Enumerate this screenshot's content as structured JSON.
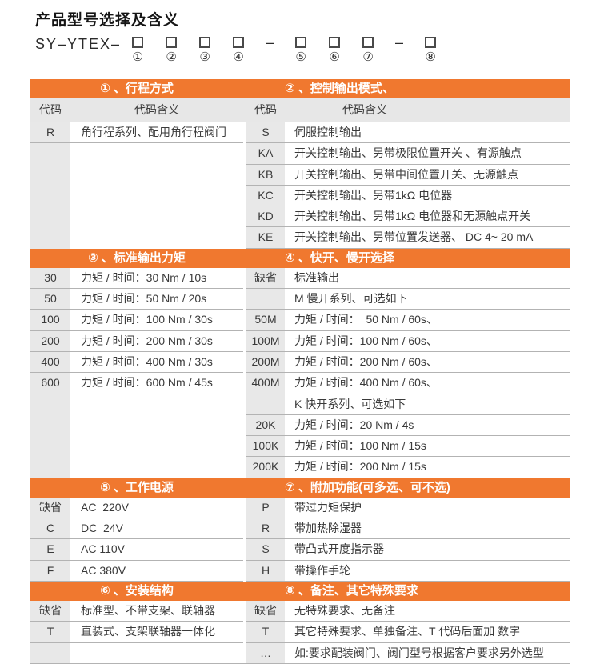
{
  "page": {
    "title": "产品型号选择及含义"
  },
  "model_line": {
    "prefix": "SY–YTEX–",
    "separator": "–",
    "box_icon": "checkbox-outline",
    "groups": [
      [
        "①",
        "②",
        "③",
        "④"
      ],
      [
        "⑤",
        "⑥",
        "⑦"
      ],
      [
        "⑧"
      ]
    ]
  },
  "table": {
    "code_header": "代码",
    "meaning_header": "代码含义",
    "sections": [
      {
        "header_row": true,
        "left": {
          "title": "① 、行程方式",
          "rows": [
            {
              "code": "R",
              "meaning": "角行程系列、配用角行程阀门"
            }
          ]
        },
        "right": {
          "title": "② 、控制输出模式、",
          "rows": [
            {
              "code": "S",
              "meaning": "伺服控制输出"
            },
            {
              "code": "KA",
              "meaning": "开关控制输出、另带极限位置开关 、有源触点"
            },
            {
              "code": "KB",
              "meaning": "开关控制输出、另带中间位置开关、无源触点"
            },
            {
              "code": "KC",
              "meaning": "开关控制输出、另带1kΩ 电位器"
            },
            {
              "code": "KD",
              "meaning": "开关控制输出、另带1kΩ 电位器和无源触点开关"
            },
            {
              "code": "KE",
              "meaning": "开关控制输出、另带位置发送器、 DC 4~ 20 mA"
            }
          ]
        }
      },
      {
        "header_row": false,
        "left": {
          "title": "③ 、标准输出力矩",
          "rows": [
            {
              "code": "30",
              "meaning": "力矩 / 时间：30 Nm / 10s"
            },
            {
              "code": "50",
              "meaning": "力矩 / 时间：50 Nm / 20s"
            },
            {
              "code": "100",
              "meaning": "力矩 / 时间：100 Nm / 30s"
            },
            {
              "code": "200",
              "meaning": "力矩 / 时间：200 Nm / 30s"
            },
            {
              "code": "400",
              "meaning": "力矩 / 时间：400 Nm / 30s"
            },
            {
              "code": "600",
              "meaning": "力矩 / 时间：600 Nm / 45s"
            }
          ]
        },
        "right": {
          "title": "④ 、快开、慢开选择",
          "rows": [
            {
              "code": "缺省",
              "meaning": "标准输出"
            },
            {
              "code": "",
              "meaning": "M 慢开系列、可选如下"
            },
            {
              "code": "50M",
              "meaning": "力矩 / 时间：  50 Nm / 60s、"
            },
            {
              "code": "100M",
              "meaning": "力矩 / 时间：100 Nm / 60s、"
            },
            {
              "code": "200M",
              "meaning": "力矩 / 时间：200 Nm / 60s、"
            },
            {
              "code": "400M",
              "meaning": "力矩 / 时间：400 Nm / 60s、"
            },
            {
              "code": "",
              "meaning": "K 快开系列、可选如下"
            },
            {
              "code": "20K",
              "meaning": "力矩 / 时间：20 Nm / 4s"
            },
            {
              "code": "100K",
              "meaning": "力矩 / 时间：100 Nm / 15s"
            },
            {
              "code": "200K",
              "meaning": "力矩 / 时间：200 Nm / 15s"
            }
          ]
        }
      },
      {
        "header_row": false,
        "left": {
          "title": "⑤ 、工作电源",
          "rows": [
            {
              "code": "缺省",
              "meaning": "AC  220V"
            },
            {
              "code": "C",
              "meaning": "DC  24V"
            },
            {
              "code": "E",
              "meaning": "AC 110V"
            },
            {
              "code": "F",
              "meaning": "AC 380V"
            }
          ]
        },
        "right": {
          "title": "⑦ 、附加功能(可多选、可不选)",
          "rows": [
            {
              "code": "P",
              "meaning": "带过力矩保护"
            },
            {
              "code": "R",
              "meaning": "带加热除湿器"
            },
            {
              "code": "S",
              "meaning": "带凸式开度指示器"
            },
            {
              "code": "H",
              "meaning": "带操作手轮"
            }
          ]
        }
      },
      {
        "header_row": false,
        "left": {
          "title": "⑥ 、安装结构",
          "rows": [
            {
              "code": "缺省",
              "meaning": "标准型、不带支架、联轴器"
            },
            {
              "code": "T",
              "meaning": "直装式、支架联轴器一体化"
            }
          ]
        },
        "right": {
          "title": "⑧ 、备注、其它特殊要求",
          "rows": [
            {
              "code": "缺省",
              "meaning": "无特殊要求、无备注"
            },
            {
              "code": "T",
              "meaning": "其它特殊要求、单独备注、T 代码后面加 数字"
            },
            {
              "code": "…",
              "meaning": "如:要求配装阀门、阀门型号根据客户要求另外选型"
            }
          ]
        }
      }
    ]
  },
  "colors": {
    "accent": "#F0782F",
    "code_cell_bg": "#E8E8E8",
    "header_row_bg": "#E7E7E7",
    "row_line": "#B3B3B3",
    "text": "#3A3A3A",
    "band_text": "#FFFFFF"
  }
}
